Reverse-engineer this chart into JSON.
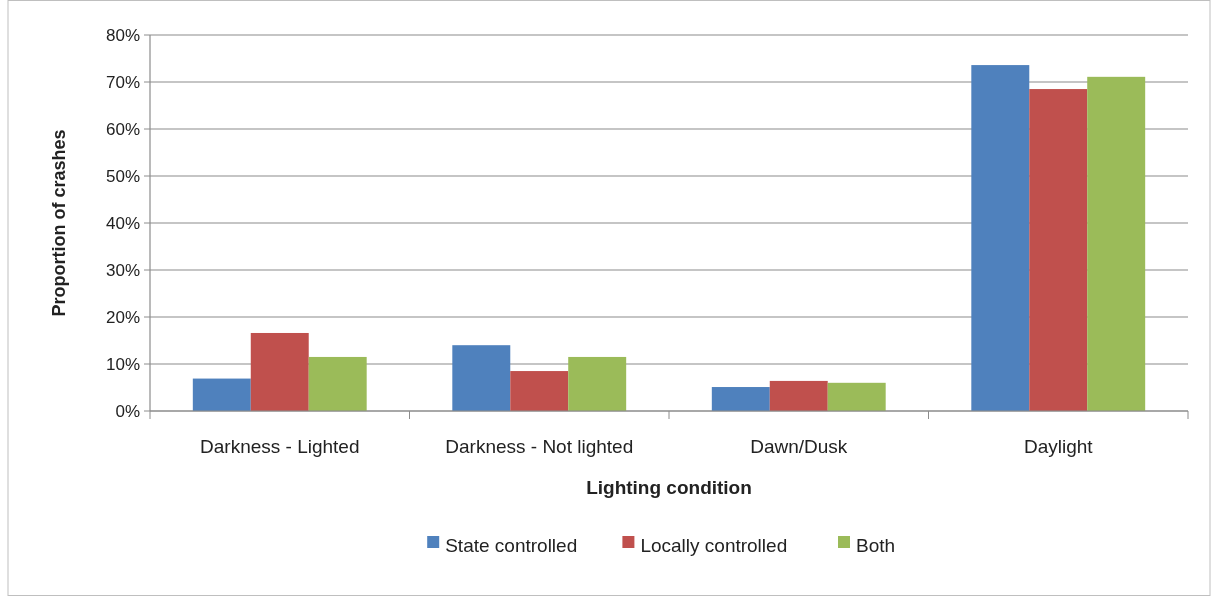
{
  "chart_data": {
    "type": "bar",
    "xlabel": "Lighting condition",
    "ylabel": "Proportion of crashes",
    "categories": [
      "Darkness - Lighted",
      "Darkness - Not lighted",
      "Dawn/Dusk",
      "Daylight"
    ],
    "series": [
      {
        "name": "State controlled",
        "color": "#4f81bd",
        "values": [
          6.9,
          14.0,
          5.1,
          73.6
        ]
      },
      {
        "name": "Locally controlled",
        "color": "#c0504d",
        "values": [
          16.6,
          8.5,
          6.4,
          68.5
        ]
      },
      {
        "name": "Both",
        "color": "#9bbb59",
        "values": [
          11.5,
          11.5,
          6.0,
          71.1
        ]
      }
    ],
    "ylim": [
      0,
      80
    ],
    "yticks": [
      {
        "value": 0,
        "label": "0%"
      },
      {
        "value": 10,
        "label": "10%"
      },
      {
        "value": 20,
        "label": "20%"
      },
      {
        "value": 30,
        "label": "30%"
      },
      {
        "value": 40,
        "label": "40%"
      },
      {
        "value": 50,
        "label": "50%"
      },
      {
        "value": 60,
        "label": "60%"
      },
      {
        "value": 70,
        "label": "70%"
      },
      {
        "value": 80,
        "label": "80%"
      }
    ],
    "grid": "y",
    "legend": "bottom"
  }
}
